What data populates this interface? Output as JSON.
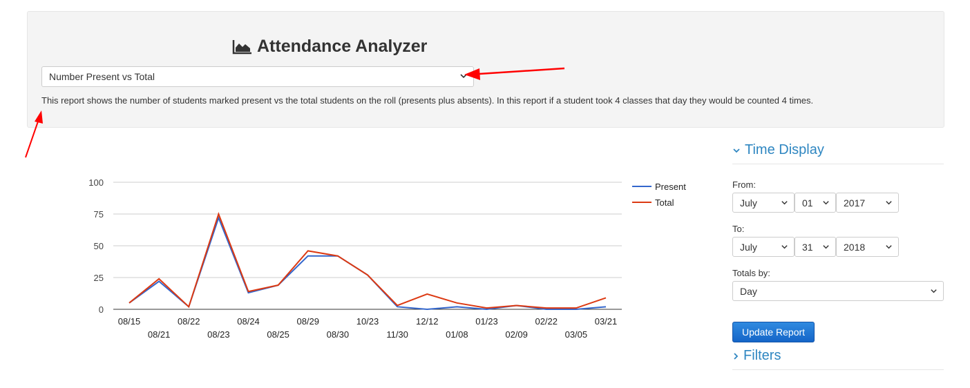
{
  "header": {
    "title": "Attendance Analyzer",
    "title_icon": "area-chart-icon",
    "report_select_value": "Number Present vs Total",
    "description": "This report shows the number of students marked present vs the total students on the roll (presents plus absents). In this report if a student took 4 classes that day they would be counted 4 times."
  },
  "sidebar": {
    "time_display_heading": "Time Display",
    "from_label": "From:",
    "from_month": "July",
    "from_day": "01",
    "from_year": "2017",
    "to_label": "To:",
    "to_month": "July",
    "to_day": "31",
    "to_year": "2018",
    "totals_by_label": "Totals by:",
    "totals_by_value": "Day",
    "update_button": "Update Report",
    "filters_heading": "Filters"
  },
  "colors": {
    "accent": "#2e86c1",
    "present_series": "#3366cc",
    "total_series": "#dc3912",
    "annotation_arrow": "#ff0000"
  },
  "chart_data": {
    "type": "line",
    "categories": [
      "08/15",
      "08/21",
      "08/22",
      "08/23",
      "08/24",
      "08/25",
      "08/29",
      "08/30",
      "10/23",
      "11/30",
      "12/12",
      "01/08",
      "01/23",
      "02/09",
      "02/22",
      "03/05",
      "03/21"
    ],
    "series": [
      {
        "name": "Present",
        "values": [
          5,
          22,
          2,
          72,
          13,
          19,
          42,
          42,
          27,
          2,
          0,
          2,
          0,
          3,
          0,
          0,
          2
        ]
      },
      {
        "name": "Total",
        "values": [
          5,
          24,
          2,
          75,
          14,
          19,
          46,
          42,
          27,
          3,
          12,
          5,
          1,
          3,
          1,
          1,
          9
        ]
      }
    ],
    "yticks": [
      0,
      25,
      50,
      75,
      100
    ],
    "ylim": [
      0,
      100
    ],
    "legend": "right",
    "grid": true
  }
}
